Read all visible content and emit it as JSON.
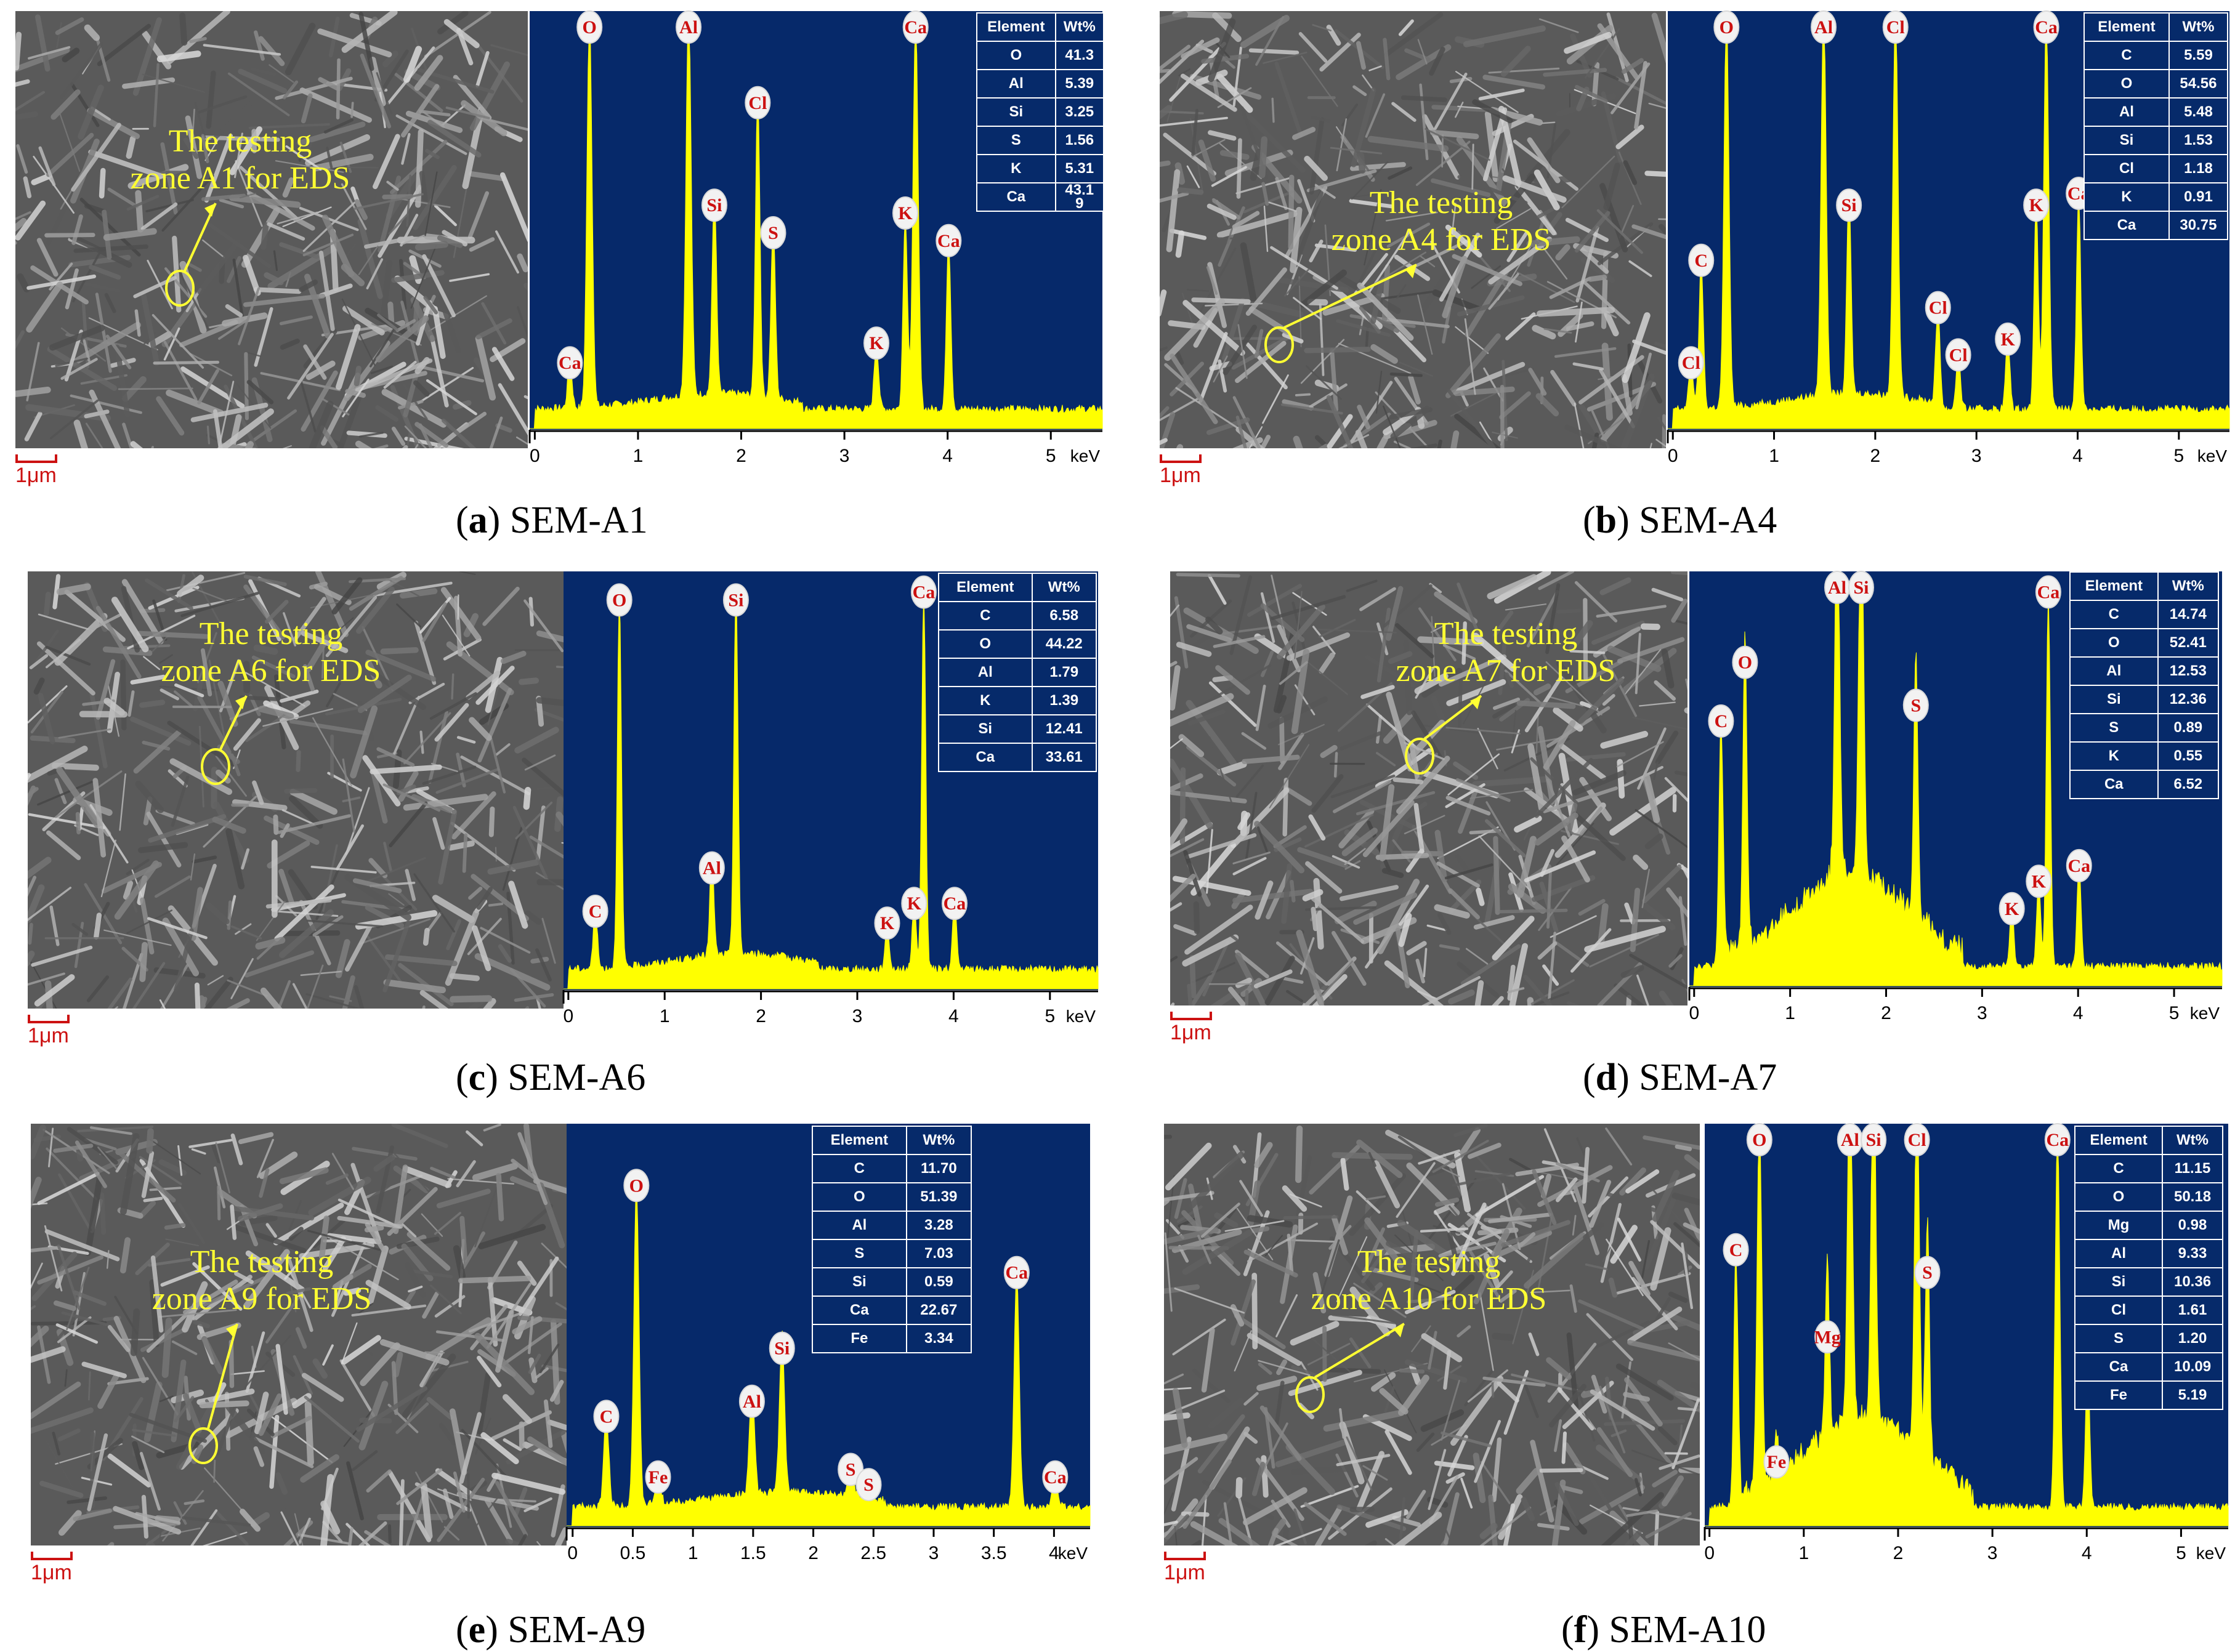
{
  "colors": {
    "spectrum": "#ffff00",
    "plot_bg": "#06296a",
    "axis": "#000000",
    "scale": "#cc1111",
    "peak_label": "#cc1111",
    "annotation": "#ffff33"
  },
  "scale_label": "1μm",
  "table_headers": [
    "Element",
    "Wt%"
  ],
  "panels": [
    {
      "caption_letter": "a",
      "caption_text": "SEM-A1",
      "annotation": [
        "The testing",
        "zone A1 for EDS"
      ],
      "chart_data": {
        "type": "area",
        "xlabel": "keV",
        "xlim": [
          -0.05,
          5.5
        ],
        "xticks": [
          "0",
          "1",
          "2",
          "3",
          "4",
          "5"
        ],
        "peaks": [
          {
            "label": "Ca",
            "x": 0.34,
            "y": 0.12
          },
          {
            "label": "O",
            "x": 0.53,
            "y": 1.0
          },
          {
            "label": "Al",
            "x": 1.49,
            "y": 1.0
          },
          {
            "label": "Si",
            "x": 1.74,
            "y": 0.52
          },
          {
            "label": "Cl",
            "x": 2.16,
            "y": 0.78
          },
          {
            "label": "S",
            "x": 2.31,
            "y": 0.45
          },
          {
            "label": "K",
            "x": 3.31,
            "y": 0.17
          },
          {
            "label": "K",
            "x": 3.59,
            "y": 0.5
          },
          {
            "label": "Ca",
            "x": 3.69,
            "y": 1.0
          },
          {
            "label": "Ca",
            "x": 4.01,
            "y": 0.43
          }
        ],
        "table": [
          [
            "O",
            "41.3"
          ],
          [
            "Al",
            "5.39"
          ],
          [
            "Si",
            "3.25"
          ],
          [
            "S",
            "1.56"
          ],
          [
            "K",
            "5.31"
          ],
          [
            "Ca",
            "43.1\n9"
          ]
        ]
      }
    },
    {
      "caption_letter": "b",
      "caption_text": "SEM-A4",
      "annotation": [
        "The testing",
        "zone A4 for EDS"
      ],
      "chart_data": {
        "type": "area",
        "xlabel": "keV",
        "xlim": [
          -0.05,
          5.5
        ],
        "xticks": [
          "0",
          "1",
          "2",
          "3",
          "4",
          "5"
        ],
        "peaks": [
          {
            "label": "Cl",
            "x": 0.18,
            "y": 0.12
          },
          {
            "label": "C",
            "x": 0.28,
            "y": 0.38
          },
          {
            "label": "O",
            "x": 0.53,
            "y": 1.0
          },
          {
            "label": "Al",
            "x": 1.49,
            "y": 1.0
          },
          {
            "label": "Si",
            "x": 1.74,
            "y": 0.52
          },
          {
            "label": "Cl",
            "x": 2.2,
            "y": 1.0
          },
          {
            "label": "Cl",
            "x": 2.62,
            "y": 0.26
          },
          {
            "label": "Cl",
            "x": 2.82,
            "y": 0.14
          },
          {
            "label": "K",
            "x": 3.31,
            "y": 0.18
          },
          {
            "label": "K",
            "x": 3.59,
            "y": 0.52
          },
          {
            "label": "Ca",
            "x": 3.69,
            "y": 1.0
          },
          {
            "label": "Ca",
            "x": 4.01,
            "y": 0.55
          }
        ],
        "table": [
          [
            "C",
            "5.59"
          ],
          [
            "O",
            "54.56"
          ],
          [
            "Al",
            "5.48"
          ],
          [
            "Si",
            "1.53"
          ],
          [
            "Cl",
            "1.18"
          ],
          [
            "K",
            "0.91"
          ],
          [
            "Ca",
            "30.75"
          ]
        ]
      }
    },
    {
      "caption_letter": "c",
      "caption_text": "SEM-A6",
      "annotation": [
        "The testing",
        "zone A6 for EDS"
      ],
      "chart_data": {
        "type": "area",
        "xlabel": "keV",
        "xlim": [
          -0.05,
          5.5
        ],
        "xticks": [
          "0",
          "1",
          "2",
          "3",
          "4",
          "5"
        ],
        "peaks": [
          {
            "label": "C",
            "x": 0.28,
            "y": 0.15
          },
          {
            "label": "O",
            "x": 0.53,
            "y": 0.94
          },
          {
            "label": "Al",
            "x": 1.49,
            "y": 0.26
          },
          {
            "label": "Si",
            "x": 1.74,
            "y": 0.94
          },
          {
            "label": "K",
            "x": 3.31,
            "y": 0.12
          },
          {
            "label": "K",
            "x": 3.59,
            "y": 0.17
          },
          {
            "label": "Ca",
            "x": 3.69,
            "y": 0.96
          },
          {
            "label": "Ca",
            "x": 4.01,
            "y": 0.17
          }
        ],
        "table": [
          [
            "C",
            "6.58"
          ],
          [
            "O",
            "44.22"
          ],
          [
            "Al",
            "1.79"
          ],
          [
            "K",
            "1.39"
          ],
          [
            "Si",
            "12.41"
          ],
          [
            "Ca",
            "33.61"
          ]
        ]
      }
    },
    {
      "caption_letter": "d",
      "caption_text": "SEM-A7",
      "annotation": [
        "The testing",
        "zone A7 for EDS"
      ],
      "chart_data": {
        "type": "area",
        "xlabel": "keV",
        "xlim": [
          -0.05,
          5.5
        ],
        "xticks": [
          "0",
          "1",
          "2",
          "3",
          "4",
          "5"
        ],
        "peaks": [
          {
            "label": "C",
            "x": 0.28,
            "y": 0.63
          },
          {
            "label": "O",
            "x": 0.53,
            "y": 0.78
          },
          {
            "label": "Al",
            "x": 1.49,
            "y": 1.0
          },
          {
            "label": "Si",
            "x": 1.74,
            "y": 1.0
          },
          {
            "label": "S",
            "x": 2.31,
            "y": 0.67
          },
          {
            "label": "K",
            "x": 3.31,
            "y": 0.15
          },
          {
            "label": "K",
            "x": 3.59,
            "y": 0.22
          },
          {
            "label": "Ca",
            "x": 3.69,
            "y": 0.96
          },
          {
            "label": "Ca",
            "x": 4.01,
            "y": 0.26
          }
        ],
        "table": [
          [
            "C",
            "14.74"
          ],
          [
            "O",
            "52.41"
          ],
          [
            "Al",
            "12.53"
          ],
          [
            "Si",
            "12.36"
          ],
          [
            "S",
            "0.89"
          ],
          [
            "K",
            "0.55"
          ],
          [
            "Ca",
            "6.52"
          ]
        ]
      }
    },
    {
      "caption_letter": "e",
      "caption_text": "SEM-A9",
      "annotation": [
        "The testing",
        "zone A9 for EDS"
      ],
      "chart_data": {
        "type": "area",
        "xlabel": "keV",
        "xlim": [
          -0.05,
          4.3
        ],
        "xticks": [
          "0",
          "0.5",
          "1",
          "1.5",
          "2",
          "2.5",
          "3",
          "3.5",
          "4"
        ],
        "xtick_values": [
          0,
          0.5,
          1,
          1.5,
          2,
          2.5,
          3,
          3.5,
          4
        ],
        "peaks": [
          {
            "label": "C",
            "x": 0.28,
            "y": 0.24
          },
          {
            "label": "O",
            "x": 0.53,
            "y": 0.85
          },
          {
            "label": "Fe",
            "x": 0.71,
            "y": 0.08
          },
          {
            "label": "Al",
            "x": 1.49,
            "y": 0.28
          },
          {
            "label": "Si",
            "x": 1.74,
            "y": 0.42
          },
          {
            "label": "S",
            "x": 2.31,
            "y": 0.1
          },
          {
            "label": "S",
            "x": 2.46,
            "y": 0.06
          },
          {
            "label": "Ca",
            "x": 3.69,
            "y": 0.62
          },
          {
            "label": "Ca",
            "x": 4.01,
            "y": 0.08
          }
        ],
        "table": [
          [
            "C",
            "11.70"
          ],
          [
            "O",
            "51.39"
          ],
          [
            "Al",
            "3.28"
          ],
          [
            "S",
            "7.03"
          ],
          [
            "Si",
            "0.59"
          ],
          [
            "Ca",
            "22.67"
          ],
          [
            "Fe",
            "3.34"
          ]
        ]
      }
    },
    {
      "caption_letter": "f",
      "caption_text": "SEM-A10",
      "annotation": [
        "The testing",
        "zone A10 for EDS"
      ],
      "chart_data": {
        "type": "area",
        "xlabel": "keV",
        "xlim": [
          -0.05,
          5.5
        ],
        "xticks": [
          "0",
          "1",
          "2",
          "3",
          "4",
          "5"
        ],
        "peaks": [
          {
            "label": "C",
            "x": 0.28,
            "y": 0.68
          },
          {
            "label": "O",
            "x": 0.53,
            "y": 1.0
          },
          {
            "label": "Fe",
            "x": 0.71,
            "y": 0.12
          },
          {
            "label": "Mg",
            "x": 1.25,
            "y": 0.45
          },
          {
            "label": "Al",
            "x": 1.49,
            "y": 1.0
          },
          {
            "label": "Si",
            "x": 1.74,
            "y": 1.0
          },
          {
            "label": "Cl",
            "x": 2.2,
            "y": 1.0
          },
          {
            "label": "S",
            "x": 2.31,
            "y": 0.62
          },
          {
            "label": "Ca",
            "x": 3.69,
            "y": 1.0
          },
          {
            "label": "Ca",
            "x": 4.01,
            "y": 0.4
          }
        ],
        "table": [
          [
            "C",
            "11.15"
          ],
          [
            "O",
            "50.18"
          ],
          [
            "Mg",
            "0.98"
          ],
          [
            "Al",
            "9.33"
          ],
          [
            "Si",
            "10.36"
          ],
          [
            "Cl",
            "1.61"
          ],
          [
            "S",
            "1.20"
          ],
          [
            "Ca",
            "10.09"
          ],
          [
            "Fe",
            "5.19"
          ]
        ]
      }
    }
  ]
}
